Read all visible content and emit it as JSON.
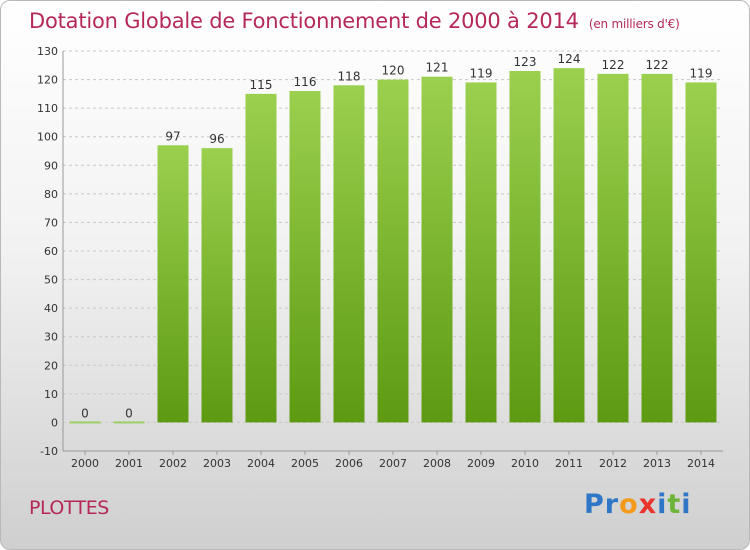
{
  "title": {
    "main": "Dotation Globale de Fonctionnement de 2000 à 2014",
    "unit": "(en milliers d'€)"
  },
  "commune": "PLOTTES",
  "logo": {
    "text": "Proxiti",
    "letters": [
      {
        "ch": "P",
        "color": "#2f76c6"
      },
      {
        "ch": "r",
        "color": "#2f76c6"
      },
      {
        "ch": "o",
        "color": "#f39a1c"
      },
      {
        "ch": "x",
        "color": "#e8342d"
      },
      {
        "ch": "i",
        "color": "#2f76c6"
      },
      {
        "ch": "t",
        "color": "#6db53a"
      },
      {
        "ch": "i",
        "color": "#2f76c6"
      }
    ]
  },
  "colors": {
    "title": "#b5285a",
    "bar_top": "#9bd04e",
    "bar_bottom": "#5d9a12",
    "grid": "#c8c8c8",
    "zero_bar": "#9ecf62"
  },
  "chart_data": {
    "type": "bar",
    "title": "Dotation Globale de Fonctionnement de 2000 à 2014",
    "subtitle": "(en milliers d'€)",
    "categories": [
      "2000",
      "2001",
      "2002",
      "2003",
      "2004",
      "2005",
      "2006",
      "2007",
      "2008",
      "2009",
      "2010",
      "2011",
      "2012",
      "2013",
      "2014"
    ],
    "values": [
      0,
      0,
      97,
      96,
      115,
      116,
      118,
      120,
      121,
      119,
      123,
      124,
      122,
      122,
      119
    ],
    "ylim": [
      -10,
      130
    ],
    "yticks": [
      -10,
      0,
      10,
      20,
      30,
      40,
      50,
      60,
      70,
      80,
      90,
      100,
      110,
      120,
      130
    ],
    "grid": true,
    "data_labels": true
  }
}
